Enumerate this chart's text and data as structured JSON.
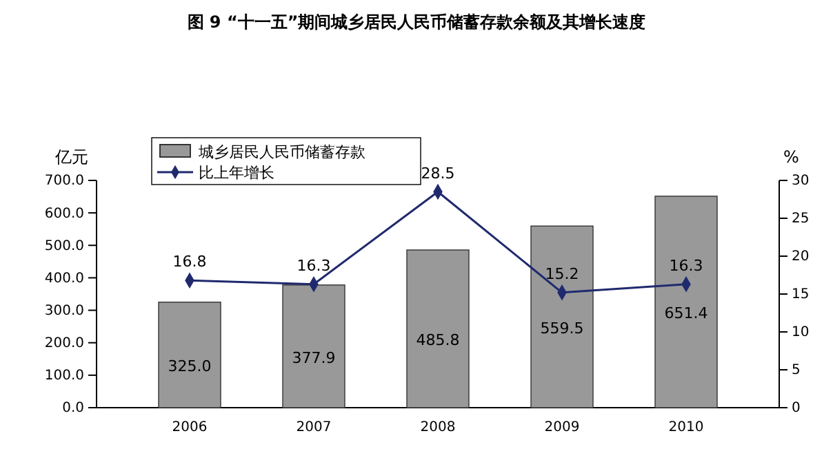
{
  "chart_data": {
    "type": "bar",
    "title": "图 9 “十一五”期间城乡居民人民币储蓄存款余额及其增长速度",
    "ylabel": "亿元",
    "y2label": "%",
    "categories": [
      "2006",
      "2007",
      "2008",
      "2009",
      "2010"
    ],
    "series": [
      {
        "name": "城乡居民人民币储蓄存款",
        "color": "#999999",
        "values": [
          325.0,
          377.9,
          485.8,
          559.5,
          651.4
        ],
        "value_labels": [
          "325.0",
          "377.9",
          "485.8",
          "559.5",
          "651.4"
        ]
      },
      {
        "name": "比上年增长",
        "type": "line",
        "axis": "y2",
        "color": "#1f2a6e",
        "values": [
          16.8,
          16.3,
          28.5,
          15.2,
          16.3
        ],
        "marker": "diamond"
      }
    ],
    "ylim": [
      0,
      700
    ],
    "yticks": [
      {
        "value": 0,
        "label": "0.0"
      },
      {
        "value": 100,
        "label": "100.0"
      },
      {
        "value": 200,
        "label": "200.0"
      },
      {
        "value": 300,
        "label": "300.0"
      },
      {
        "value": 400,
        "label": "400.0"
      },
      {
        "value": 500,
        "label": "500.0"
      },
      {
        "value": 600,
        "label": "600.0"
      },
      {
        "value": 700,
        "label": "700.0"
      }
    ],
    "y2lim": [
      0,
      30
    ],
    "y2ticks": [
      0,
      5,
      10,
      15,
      20,
      25,
      30
    ],
    "data_labels": true,
    "legend": "top left",
    "grid": false
  }
}
